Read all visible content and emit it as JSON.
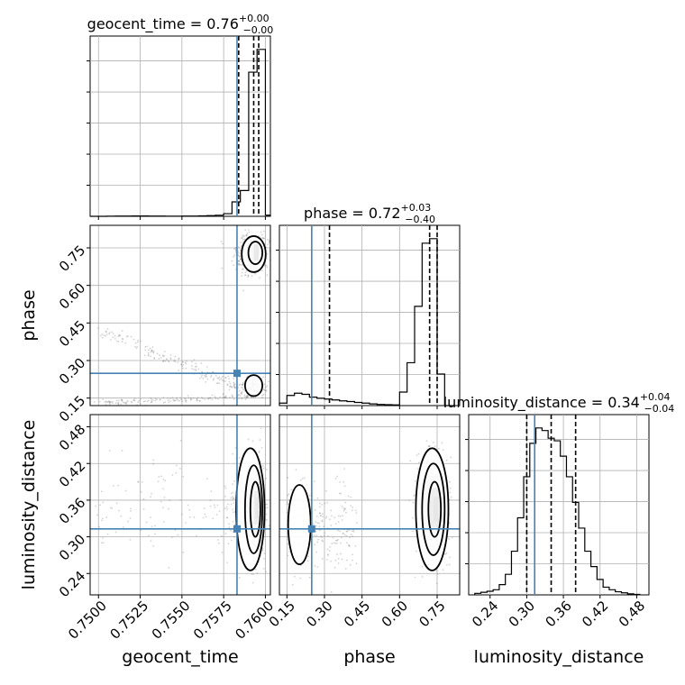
{
  "chart_data": {
    "type": "corner",
    "parameters": [
      "geocent_time",
      "phase",
      "luminosity_distance"
    ],
    "truth": {
      "geocent_time": 0.7583,
      "phase": 0.249,
      "luminosity_distance": 0.313
    },
    "colors": {
      "truth": "#4682b4",
      "hist": "#000000",
      "grid": "#b0b0b0",
      "scatter": "#808080"
    },
    "grid": true,
    "titles": [
      {
        "param": "geocent_time",
        "label": "geocent_time = ",
        "median": "0.76",
        "plus": "+0.00",
        "minus": "−0.00"
      },
      {
        "param": "phase",
        "label": "phase = ",
        "median": "0.72",
        "plus": "+0.03",
        "minus": "−0.40"
      },
      {
        "param": "luminosity_distance",
        "label": "luminosity_distance = ",
        "median": "0.34",
        "plus": "+0.04",
        "minus": "−0.04"
      }
    ],
    "axes": {
      "geocent_time": {
        "range": [
          0.7495,
          0.7603
        ],
        "ticks": [
          0.75,
          0.7525,
          0.755,
          0.7575,
          0.76
        ],
        "tick_labels": [
          "0.7500",
          "0.7525",
          "0.7550",
          "0.7575",
          "0.7600"
        ]
      },
      "phase": {
        "range": [
          0.12,
          0.84
        ],
        "ticks": [
          0.15,
          0.3,
          0.45,
          0.6,
          0.75
        ],
        "tick_labels": [
          "0.15",
          "0.30",
          "0.45",
          "0.60",
          "0.75"
        ]
      },
      "luminosity_distance": {
        "range": [
          0.205,
          0.5
        ],
        "ticks": [
          0.24,
          0.3,
          0.36,
          0.42,
          0.48
        ],
        "tick_labels": [
          "0.24",
          "0.30",
          "0.36",
          "0.42",
          "0.48"
        ]
      }
    },
    "quantiles": {
      "geocent_time": [
        0.7584,
        0.7593,
        0.7596
      ],
      "phase": [
        0.32,
        0.72,
        0.75
      ],
      "luminosity_distance": [
        0.3,
        0.34,
        0.38
      ]
    },
    "histograms": {
      "geocent_time": {
        "edges": [
          0.7495,
          0.75,
          0.7505,
          0.751,
          0.7515,
          0.752,
          0.7525,
          0.753,
          0.7535,
          0.754,
          0.7545,
          0.755,
          0.7555,
          0.756,
          0.7565,
          0.757,
          0.7575,
          0.758,
          0.7585,
          0.759,
          0.7595,
          0.76,
          0.7603
        ],
        "counts": [
          0,
          0,
          2,
          3,
          4,
          5,
          5,
          4,
          3,
          2,
          2,
          3,
          4,
          6,
          9,
          14,
          35,
          190,
          340,
          1900,
          2200,
          15
        ]
      },
      "phase": {
        "edges": [
          0.12,
          0.15,
          0.18,
          0.21,
          0.24,
          0.27,
          0.3,
          0.33,
          0.36,
          0.39,
          0.42,
          0.45,
          0.48,
          0.51,
          0.54,
          0.57,
          0.6,
          0.63,
          0.66,
          0.69,
          0.72,
          0.75,
          0.78,
          0.81
        ],
        "counts": [
          22,
          90,
          110,
          100,
          75,
          65,
          58,
          50,
          42,
          36,
          28,
          22,
          15,
          10,
          8,
          6,
          120,
          380,
          880,
          1440,
          1480,
          280,
          0
        ]
      },
      "luminosity_distance": {
        "edges": [
          0.215,
          0.225,
          0.235,
          0.245,
          0.255,
          0.265,
          0.275,
          0.285,
          0.295,
          0.305,
          0.315,
          0.325,
          0.335,
          0.345,
          0.355,
          0.365,
          0.375,
          0.385,
          0.395,
          0.405,
          0.415,
          0.425,
          0.435,
          0.445,
          0.455,
          0.465,
          0.475,
          0.485
        ],
        "counts": [
          6,
          10,
          14,
          20,
          40,
          80,
          170,
          300,
          460,
          590,
          650,
          640,
          610,
          600,
          540,
          460,
          360,
          260,
          170,
          110,
          60,
          30,
          20,
          12,
          8,
          4,
          2
        ]
      }
    }
  }
}
